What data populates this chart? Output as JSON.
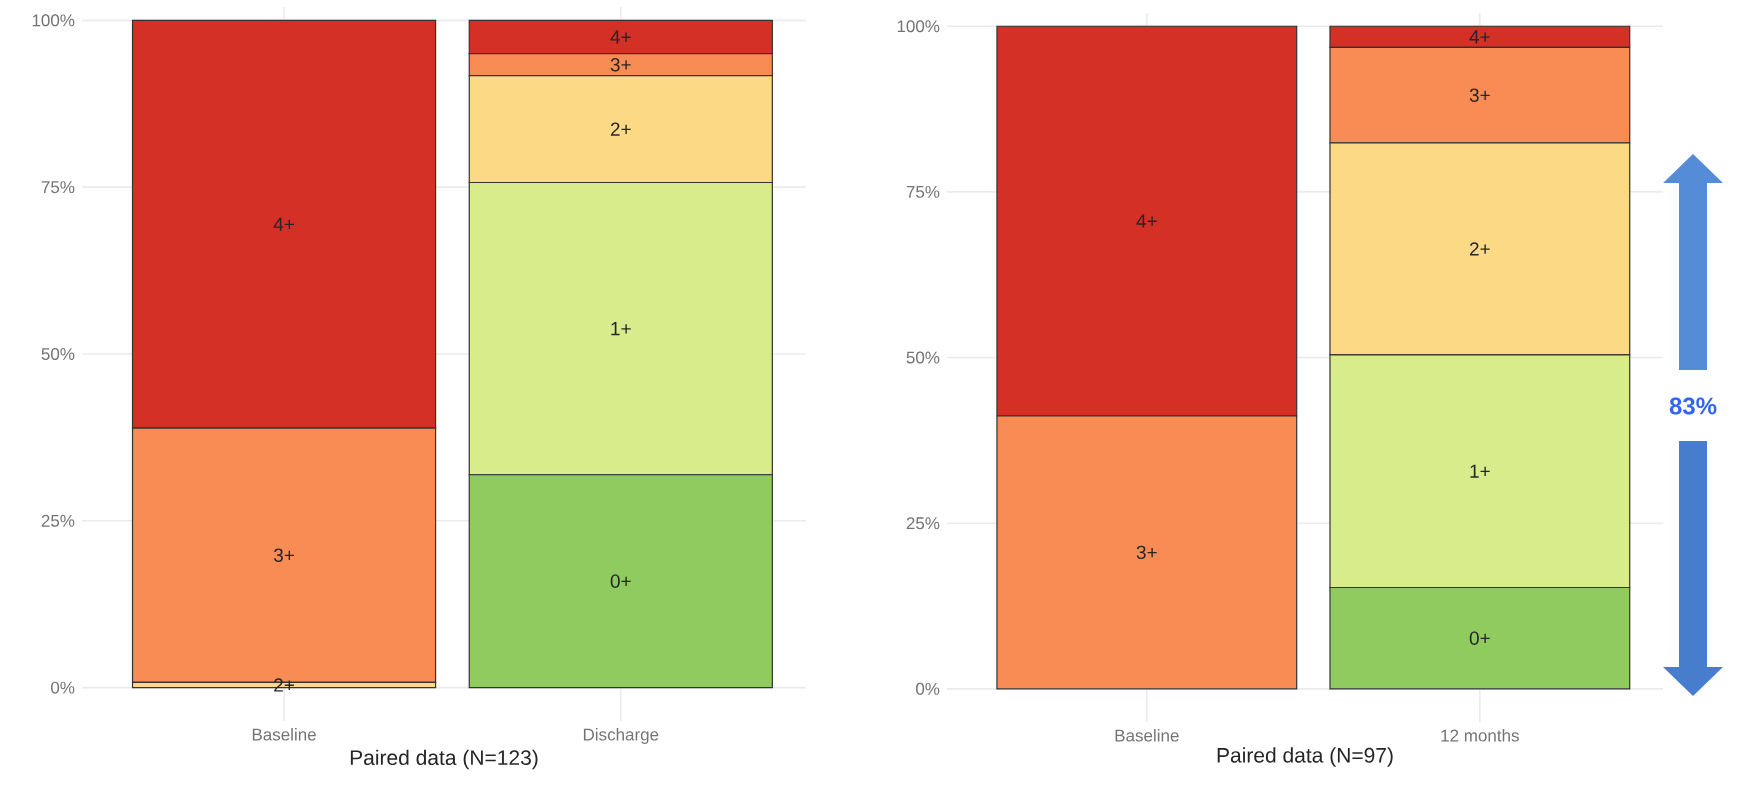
{
  "chart_data": [
    {
      "type": "bar",
      "stacked": true,
      "xlabel": "Paired data (N=123)",
      "categories": [
        "Baseline",
        "Discharge"
      ],
      "ylim": [
        -5,
        102
      ],
      "yticks": [
        {
          "value": 0,
          "label": "0%"
        },
        {
          "value": 25,
          "label": "25%"
        },
        {
          "value": 50,
          "label": "50%"
        },
        {
          "value": 75,
          "label": "75%"
        },
        {
          "value": 100,
          "label": "100%"
        }
      ],
      "grid": true,
      "series": [
        {
          "name": "0+",
          "color": "#8fcb5f",
          "values": [
            null,
            31.9
          ]
        },
        {
          "name": "1+",
          "color": "#d9ec8c",
          "values": [
            null,
            43.8
          ]
        },
        {
          "name": "2+",
          "color": "#fcd984",
          "values": [
            0.8,
            16.0
          ]
        },
        {
          "name": "3+",
          "color": "#f98c55",
          "values": [
            38.1,
            3.3
          ]
        },
        {
          "name": "4+",
          "color": "#d53025",
          "values": [
            61.1,
            5.0
          ]
        }
      ]
    },
    {
      "type": "bar",
      "stacked": true,
      "xlabel": "Paired data (N=97)",
      "categories": [
        "Baseline",
        "12 months"
      ],
      "ylim": [
        -5,
        102
      ],
      "yticks": [
        {
          "value": 0,
          "label": "0%"
        },
        {
          "value": 25,
          "label": "25%"
        },
        {
          "value": 50,
          "label": "50%"
        },
        {
          "value": 75,
          "label": "75%"
        },
        {
          "value": 100,
          "label": "100%"
        }
      ],
      "grid": true,
      "annotations": [
        "83%"
      ],
      "series": [
        {
          "name": "0+",
          "color": "#8fcb5f",
          "values": [
            null,
            15.3
          ]
        },
        {
          "name": "1+",
          "color": "#d9ec8c",
          "values": [
            null,
            35.1
          ]
        },
        {
          "name": "2+",
          "color": "#fcd984",
          "values": [
            null,
            32.0
          ]
        },
        {
          "name": "3+",
          "color": "#f98c55",
          "values": [
            41.2,
            14.4
          ]
        },
        {
          "name": "4+",
          "color": "#d53025",
          "values": [
            58.8,
            3.2
          ]
        }
      ]
    }
  ]
}
